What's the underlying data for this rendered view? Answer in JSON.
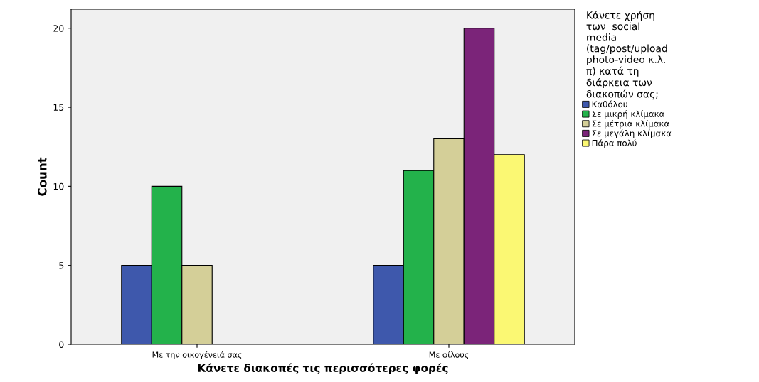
{
  "chart_data": {
    "type": "bar",
    "categories": [
      "Με την οικογένειά σας",
      "Με φίλους"
    ],
    "xlabel": "Κάνετε διακοπές τις περισσότερες φορές",
    "ylabel": "Count",
    "legend_title": "Κάνετε χρήση\nτων  social\nmedia\n(tag/post/upload\nphoto-video κ.λ.\nπ) κατά τη\nδιάρκεια των\nδιακοπών σας;",
    "series": [
      {
        "name": "Καθόλου",
        "color": "#3e58ac",
        "values": [
          5,
          5
        ]
      },
      {
        "name": "Σε μικρή κλίμακα",
        "color": "#23b24b",
        "values": [
          10,
          11
        ]
      },
      {
        "name": "Σε μέτρια κλίμακα",
        "color": "#d4cf98",
        "values": [
          5,
          13
        ]
      },
      {
        "name": "Σε μεγάλη κλίμακα",
        "color": "#7b2479",
        "values": [
          0,
          20
        ]
      },
      {
        "name": "Πάρα πολύ",
        "color": "#fbf873",
        "values": [
          0,
          12
        ]
      }
    ],
    "ylim": [
      0,
      21.2
    ],
    "yticks": [
      0,
      5,
      10,
      15,
      20
    ],
    "grid": false,
    "legend": "right"
  }
}
